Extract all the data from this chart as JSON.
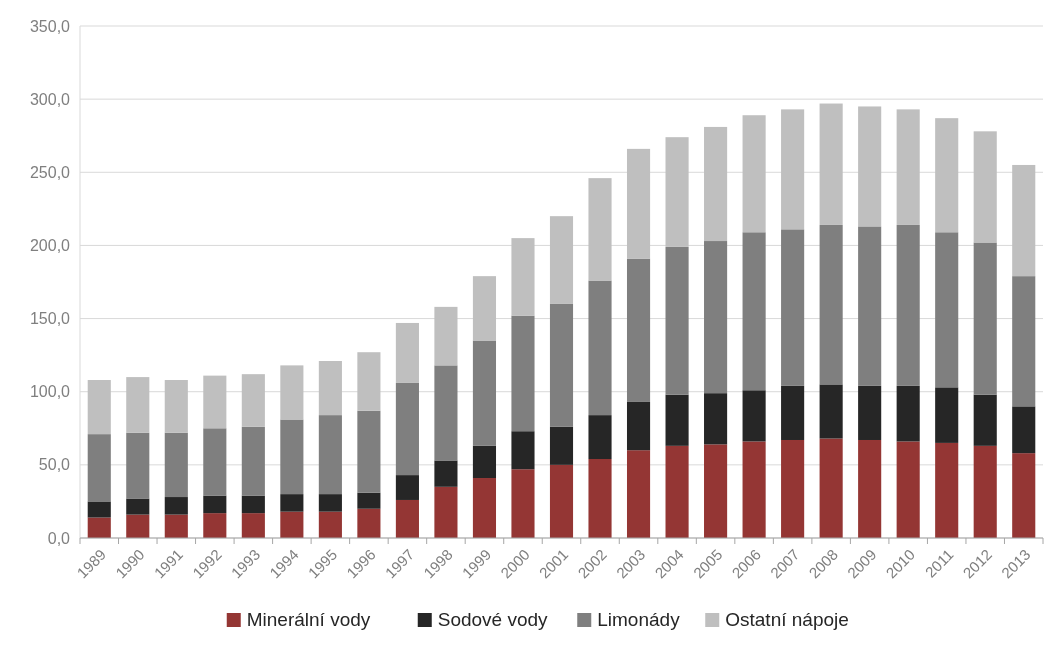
{
  "chart_data": {
    "type": "bar",
    "stacked": true,
    "categories": [
      "1989",
      "1990",
      "1991",
      "1992",
      "1993",
      "1994",
      "1995",
      "1996",
      "1997",
      "1998",
      "1999",
      "2000",
      "2001",
      "2002",
      "2003",
      "2004",
      "2005",
      "2006",
      "2007",
      "2008",
      "2009",
      "2010",
      "2011",
      "2012",
      "2013"
    ],
    "series": [
      {
        "name": "Minerální vody",
        "color": "#943634",
        "values": [
          14,
          16,
          16,
          17,
          17,
          18,
          18,
          20,
          26,
          35,
          41,
          47,
          50,
          54,
          60,
          63,
          64,
          66,
          67,
          68,
          67,
          66,
          65,
          63,
          58
        ]
      },
      {
        "name": "Sodové vody",
        "color": "#262626",
        "values": [
          11,
          11,
          12,
          12,
          12,
          12,
          12,
          11,
          17,
          18,
          22,
          26,
          26,
          30,
          33,
          35,
          35,
          35,
          37,
          37,
          37,
          38,
          38,
          35,
          32
        ]
      },
      {
        "name": "Limonády",
        "color": "#7f7f7f",
        "values": [
          46,
          45,
          44,
          46,
          47,
          51,
          54,
          56,
          63,
          65,
          72,
          79,
          84,
          92,
          98,
          101,
          104,
          108,
          107,
          109,
          109,
          110,
          106,
          104,
          89
        ]
      },
      {
        "name": "Ostatní nápoje",
        "color": "#bfbfbf",
        "values": [
          37,
          38,
          36,
          36,
          36,
          37,
          37,
          40,
          41,
          40,
          44,
          53,
          60,
          70,
          75,
          75,
          78,
          80,
          82,
          83,
          82,
          79,
          78,
          76,
          76
        ]
      }
    ],
    "ylim": [
      0,
      350
    ],
    "yticks": [
      {
        "value": 0,
        "label": "0,0"
      },
      {
        "value": 50,
        "label": "50,0"
      },
      {
        "value": 100,
        "label": "100,0"
      },
      {
        "value": 150,
        "label": "150,0"
      },
      {
        "value": 200,
        "label": "200,0"
      },
      {
        "value": 250,
        "label": "250,0"
      },
      {
        "value": 300,
        "label": "300,0"
      },
      {
        "value": 350,
        "label": "350,0"
      }
    ],
    "grid": "y",
    "legend": "bottom"
  }
}
